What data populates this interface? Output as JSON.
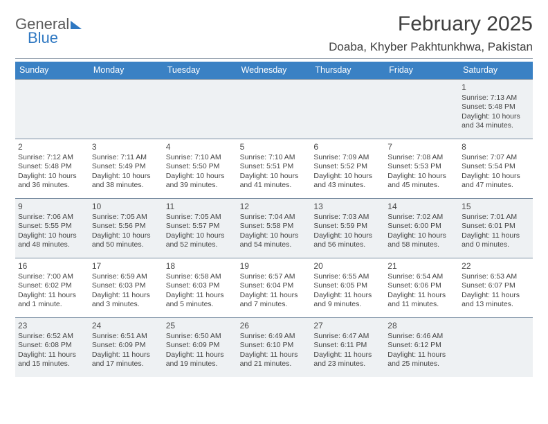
{
  "brand": {
    "line1": "General",
    "line2": "Blue"
  },
  "title": "February 2025",
  "location": "Doaba, Khyber Pakhtunkhwa, Pakistan",
  "colors": {
    "header_bg": "#3a81c4",
    "shade_bg": "#eef1f3",
    "rule": "#7a8ea2"
  },
  "dow": [
    "Sunday",
    "Monday",
    "Tuesday",
    "Wednesday",
    "Thursday",
    "Friday",
    "Saturday"
  ],
  "weeks": [
    [
      {
        "n": "",
        "sr": "",
        "ss": "",
        "dl": "",
        "empty": true
      },
      {
        "n": "",
        "sr": "",
        "ss": "",
        "dl": "",
        "empty": true
      },
      {
        "n": "",
        "sr": "",
        "ss": "",
        "dl": "",
        "empty": true
      },
      {
        "n": "",
        "sr": "",
        "ss": "",
        "dl": "",
        "empty": true
      },
      {
        "n": "",
        "sr": "",
        "ss": "",
        "dl": "",
        "empty": true
      },
      {
        "n": "",
        "sr": "",
        "ss": "",
        "dl": "",
        "empty": true
      },
      {
        "n": "1",
        "sr": "Sunrise: 7:13 AM",
        "ss": "Sunset: 5:48 PM",
        "dl": "Daylight: 10 hours and 34 minutes."
      }
    ],
    [
      {
        "n": "2",
        "sr": "Sunrise: 7:12 AM",
        "ss": "Sunset: 5:48 PM",
        "dl": "Daylight: 10 hours and 36 minutes."
      },
      {
        "n": "3",
        "sr": "Sunrise: 7:11 AM",
        "ss": "Sunset: 5:49 PM",
        "dl": "Daylight: 10 hours and 38 minutes."
      },
      {
        "n": "4",
        "sr": "Sunrise: 7:10 AM",
        "ss": "Sunset: 5:50 PM",
        "dl": "Daylight: 10 hours and 39 minutes."
      },
      {
        "n": "5",
        "sr": "Sunrise: 7:10 AM",
        "ss": "Sunset: 5:51 PM",
        "dl": "Daylight: 10 hours and 41 minutes."
      },
      {
        "n": "6",
        "sr": "Sunrise: 7:09 AM",
        "ss": "Sunset: 5:52 PM",
        "dl": "Daylight: 10 hours and 43 minutes."
      },
      {
        "n": "7",
        "sr": "Sunrise: 7:08 AM",
        "ss": "Sunset: 5:53 PM",
        "dl": "Daylight: 10 hours and 45 minutes."
      },
      {
        "n": "8",
        "sr": "Sunrise: 7:07 AM",
        "ss": "Sunset: 5:54 PM",
        "dl": "Daylight: 10 hours and 47 minutes."
      }
    ],
    [
      {
        "n": "9",
        "sr": "Sunrise: 7:06 AM",
        "ss": "Sunset: 5:55 PM",
        "dl": "Daylight: 10 hours and 48 minutes."
      },
      {
        "n": "10",
        "sr": "Sunrise: 7:05 AM",
        "ss": "Sunset: 5:56 PM",
        "dl": "Daylight: 10 hours and 50 minutes."
      },
      {
        "n": "11",
        "sr": "Sunrise: 7:05 AM",
        "ss": "Sunset: 5:57 PM",
        "dl": "Daylight: 10 hours and 52 minutes."
      },
      {
        "n": "12",
        "sr": "Sunrise: 7:04 AM",
        "ss": "Sunset: 5:58 PM",
        "dl": "Daylight: 10 hours and 54 minutes."
      },
      {
        "n": "13",
        "sr": "Sunrise: 7:03 AM",
        "ss": "Sunset: 5:59 PM",
        "dl": "Daylight: 10 hours and 56 minutes."
      },
      {
        "n": "14",
        "sr": "Sunrise: 7:02 AM",
        "ss": "Sunset: 6:00 PM",
        "dl": "Daylight: 10 hours and 58 minutes."
      },
      {
        "n": "15",
        "sr": "Sunrise: 7:01 AM",
        "ss": "Sunset: 6:01 PM",
        "dl": "Daylight: 11 hours and 0 minutes."
      }
    ],
    [
      {
        "n": "16",
        "sr": "Sunrise: 7:00 AM",
        "ss": "Sunset: 6:02 PM",
        "dl": "Daylight: 11 hours and 1 minute."
      },
      {
        "n": "17",
        "sr": "Sunrise: 6:59 AM",
        "ss": "Sunset: 6:03 PM",
        "dl": "Daylight: 11 hours and 3 minutes."
      },
      {
        "n": "18",
        "sr": "Sunrise: 6:58 AM",
        "ss": "Sunset: 6:03 PM",
        "dl": "Daylight: 11 hours and 5 minutes."
      },
      {
        "n": "19",
        "sr": "Sunrise: 6:57 AM",
        "ss": "Sunset: 6:04 PM",
        "dl": "Daylight: 11 hours and 7 minutes."
      },
      {
        "n": "20",
        "sr": "Sunrise: 6:55 AM",
        "ss": "Sunset: 6:05 PM",
        "dl": "Daylight: 11 hours and 9 minutes."
      },
      {
        "n": "21",
        "sr": "Sunrise: 6:54 AM",
        "ss": "Sunset: 6:06 PM",
        "dl": "Daylight: 11 hours and 11 minutes."
      },
      {
        "n": "22",
        "sr": "Sunrise: 6:53 AM",
        "ss": "Sunset: 6:07 PM",
        "dl": "Daylight: 11 hours and 13 minutes."
      }
    ],
    [
      {
        "n": "23",
        "sr": "Sunrise: 6:52 AM",
        "ss": "Sunset: 6:08 PM",
        "dl": "Daylight: 11 hours and 15 minutes."
      },
      {
        "n": "24",
        "sr": "Sunrise: 6:51 AM",
        "ss": "Sunset: 6:09 PM",
        "dl": "Daylight: 11 hours and 17 minutes."
      },
      {
        "n": "25",
        "sr": "Sunrise: 6:50 AM",
        "ss": "Sunset: 6:09 PM",
        "dl": "Daylight: 11 hours and 19 minutes."
      },
      {
        "n": "26",
        "sr": "Sunrise: 6:49 AM",
        "ss": "Sunset: 6:10 PM",
        "dl": "Daylight: 11 hours and 21 minutes."
      },
      {
        "n": "27",
        "sr": "Sunrise: 6:47 AM",
        "ss": "Sunset: 6:11 PM",
        "dl": "Daylight: 11 hours and 23 minutes."
      },
      {
        "n": "28",
        "sr": "Sunrise: 6:46 AM",
        "ss": "Sunset: 6:12 PM",
        "dl": "Daylight: 11 hours and 25 minutes."
      },
      {
        "n": "",
        "sr": "",
        "ss": "",
        "dl": "",
        "empty": true
      }
    ]
  ]
}
